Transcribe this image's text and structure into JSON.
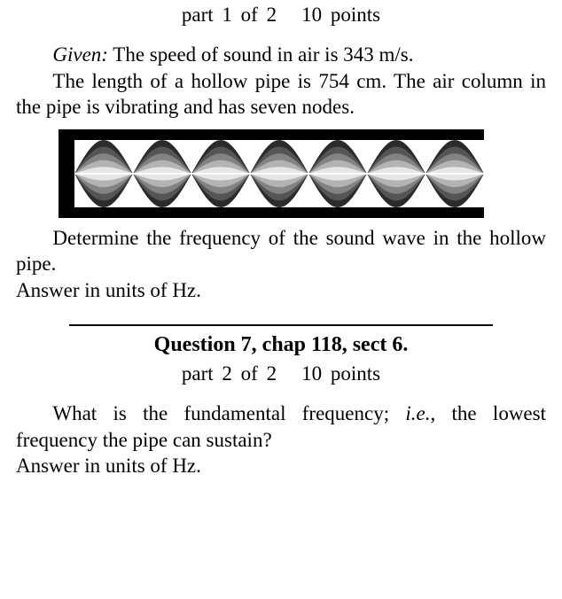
{
  "q6": {
    "part_of": "part 1 of 2",
    "points": "10 points",
    "given_label": "Given:",
    "given_text": " The speed of sound in air is 343 m/s.",
    "body_text": "The length of a hollow pipe is 754 cm. The air column in the pipe is vibrating and has seven nodes.",
    "prompt": "Determine the frequency of the sound wave in the hollow pipe.",
    "answer_line": "Answer in units of  Hz."
  },
  "figure": {
    "type": "standing-wave-in-pipe",
    "antinode_count": 7,
    "envelope_layers": 5,
    "pipe_outer_width": 480,
    "pipe_outer_height": 100,
    "pipe_wall_thickness": 12,
    "pipe_wall_color": "#000000",
    "pipe_left_cap_width": 18,
    "inner_background": "#ffffff",
    "layer_colors": [
      "#2b2b2b",
      "#555555",
      "#838383",
      "#b3b3b3",
      "#e6e6e6"
    ]
  },
  "q7": {
    "header": "Question 7, chap 118, sect 6.",
    "part_of": "part 2 of 2",
    "points": "10 points",
    "body_prefix": "What is the fundamental frequency; ",
    "body_ital": "i.e.",
    "body_suffix": ", the lowest frequency the pipe can sustain?",
    "answer_line": "Answer in units of  Hz."
  },
  "rule_color": "#000000"
}
